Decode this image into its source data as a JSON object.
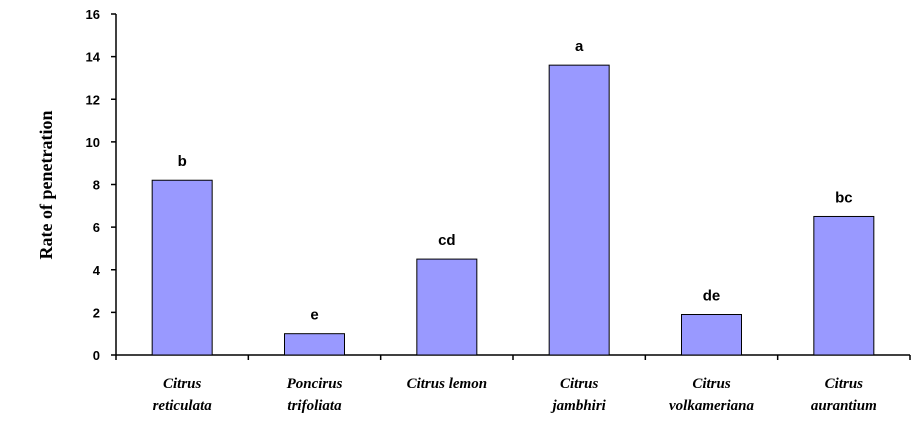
{
  "chart_data": {
    "type": "bar",
    "title": "",
    "xlabel": "",
    "ylabel": "Rate of penetration",
    "ylim": [
      0,
      16
    ],
    "yticks": [
      0,
      2,
      4,
      6,
      8,
      10,
      12,
      14,
      16
    ],
    "grid": false,
    "legend": "none",
    "bar_color": "#9999ff",
    "categories": [
      [
        "Citrus",
        "reticulata"
      ],
      [
        "Poncirus",
        "trifoliata"
      ],
      [
        "Citrus lemon"
      ],
      [
        "Citrus",
        "jambhiri"
      ],
      [
        "Citrus",
        "volkameriana"
      ],
      [
        "Citrus",
        "aurantium"
      ]
    ],
    "values": [
      8.2,
      1.0,
      4.5,
      13.6,
      1.9,
      6.5
    ],
    "data_labels": [
      "b",
      "e",
      "cd",
      "a",
      "de",
      "bc"
    ]
  }
}
